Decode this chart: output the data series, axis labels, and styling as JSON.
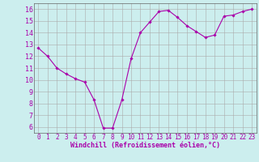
{
  "x": [
    0,
    1,
    2,
    3,
    4,
    5,
    6,
    7,
    8,
    9,
    10,
    11,
    12,
    13,
    14,
    15,
    16,
    17,
    18,
    19,
    20,
    21,
    22,
    23
  ],
  "y": [
    12.7,
    12.0,
    11.0,
    10.5,
    10.1,
    9.8,
    8.3,
    5.9,
    5.9,
    8.3,
    11.8,
    14.0,
    14.9,
    15.8,
    15.9,
    15.3,
    14.6,
    14.1,
    13.6,
    13.8,
    15.4,
    15.5,
    15.8,
    16.0
  ],
  "line_color": "#aa00aa",
  "marker": "D",
  "marker_size": 1.8,
  "linewidth": 0.8,
  "xlabel": "Windchill (Refroidissement éolien,°C)",
  "xlabel_fontsize": 6.0,
  "background_color": "#cceeee",
  "grid_color": "#aaaaaa",
  "tick_color": "#aa00aa",
  "xlim": [
    -0.5,
    23.5
  ],
  "ylim": [
    5.5,
    16.5
  ],
  "yticks": [
    6,
    7,
    8,
    9,
    10,
    11,
    12,
    13,
    14,
    15,
    16
  ],
  "xticks": [
    0,
    1,
    2,
    3,
    4,
    5,
    6,
    7,
    8,
    9,
    10,
    11,
    12,
    13,
    14,
    15,
    16,
    17,
    18,
    19,
    20,
    21,
    22,
    23
  ],
  "tick_fontsize": 5.5,
  "ytick_fontsize": 6.0
}
